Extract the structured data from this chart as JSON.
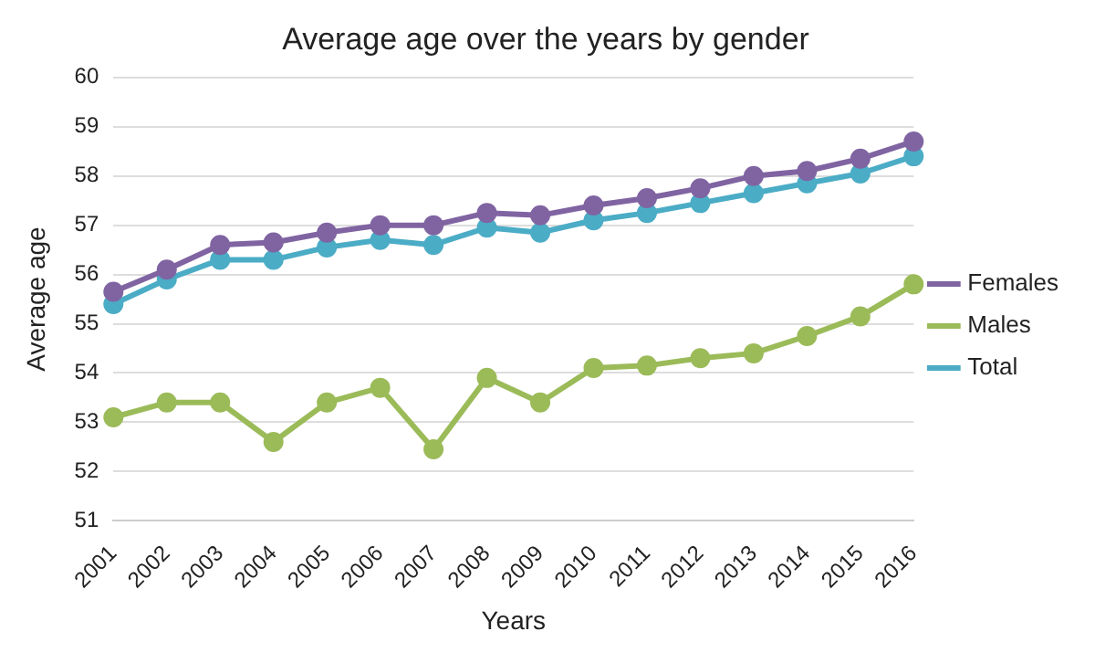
{
  "chart_data": {
    "type": "line",
    "title": "Average age over the years by gender",
    "xlabel": "Years",
    "ylabel": "Average age",
    "categories": [
      "2001",
      "2002",
      "2003",
      "2004",
      "2005",
      "2006",
      "2007",
      "2008",
      "2009",
      "2010",
      "2011",
      "2012",
      "2013",
      "2014",
      "2015",
      "2016"
    ],
    "series": [
      {
        "name": "Females",
        "color": "#8064a2",
        "values": [
          55.65,
          56.1,
          56.6,
          56.65,
          56.85,
          57.0,
          57.0,
          57.25,
          57.2,
          57.4,
          57.55,
          57.75,
          58.0,
          58.1,
          58.35,
          58.7
        ]
      },
      {
        "name": "Males",
        "color": "#9bbb59",
        "values": [
          53.1,
          53.4,
          53.4,
          52.6,
          53.4,
          53.7,
          52.45,
          53.9,
          53.4,
          54.1,
          54.15,
          54.3,
          54.4,
          54.75,
          55.15,
          55.8
        ]
      },
      {
        "name": "Total",
        "color": "#4bacc6",
        "values": [
          55.4,
          55.9,
          56.3,
          56.3,
          56.55,
          56.7,
          56.6,
          56.95,
          56.85,
          57.1,
          57.25,
          57.45,
          57.65,
          57.85,
          58.05,
          58.4
        ]
      }
    ],
    "ylim": [
      51,
      60
    ],
    "yticks": [
      51,
      52,
      53,
      54,
      55,
      56,
      57,
      58,
      59,
      60
    ],
    "grid": "y",
    "legend": "right",
    "marker": "circle",
    "line_style": "solid"
  }
}
